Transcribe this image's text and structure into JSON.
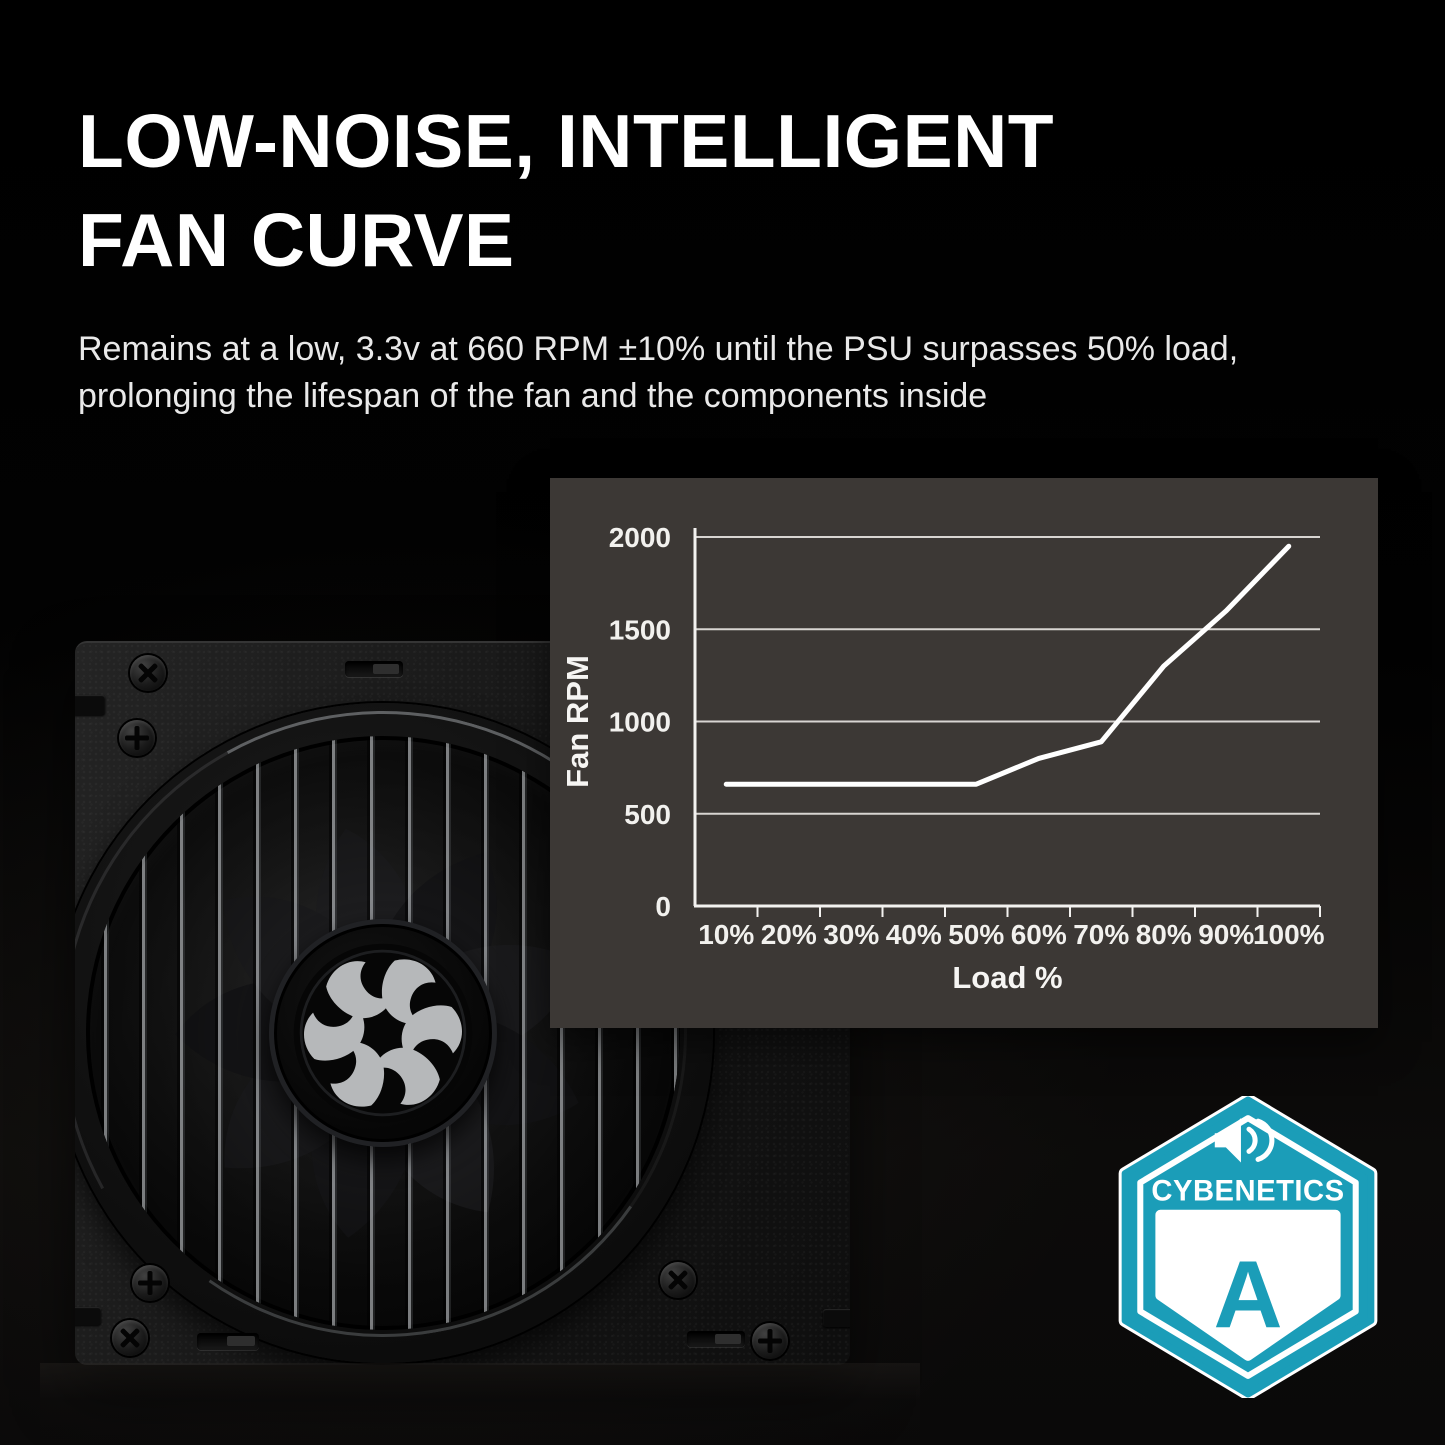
{
  "heading": {
    "line1": "LOW-NOISE, INTELLIGENT",
    "line2": "FAN CURVE"
  },
  "description": "Remains at a low, 3.3v at 660 RPM ±10% until the PSU surpasses 50% load, prolonging the lifespan of the fan and the components inside",
  "chart_data": {
    "type": "line",
    "title": "",
    "categories": [
      "10%",
      "20%",
      "30%",
      "40%",
      "50%",
      "60%",
      "70%",
      "80%",
      "90%",
      "100%"
    ],
    "series": [
      {
        "name": "Fan RPM",
        "values": [
          660,
          660,
          660,
          660,
          660,
          800,
          890,
          1300,
          1600,
          1950
        ]
      }
    ],
    "xlabel": "Load %",
    "ylabel": "Fan RPM",
    "ylim": [
      0,
      2000
    ],
    "yticks": [
      0,
      500,
      1000,
      1500,
      2000
    ],
    "grid": true,
    "legend": false,
    "line_color": "#ffffff",
    "panel_bg": "#3c3835",
    "grid_color": "#d8d5d2",
    "axis_color": "#f3f2f0",
    "tick_text_color": "#f2f1ee"
  },
  "badge": {
    "brand": "CYBENETICS",
    "grade": "A",
    "icon": "speaker-icon",
    "color": "#1b9db8"
  },
  "icons": {
    "fan_hub_logo": "xpg-logo-icon",
    "badge_sound": "speaker-icon"
  },
  "colors": {
    "background": "#000000",
    "heading_text": "#ffffff",
    "body_text": "#e9e9e9"
  }
}
